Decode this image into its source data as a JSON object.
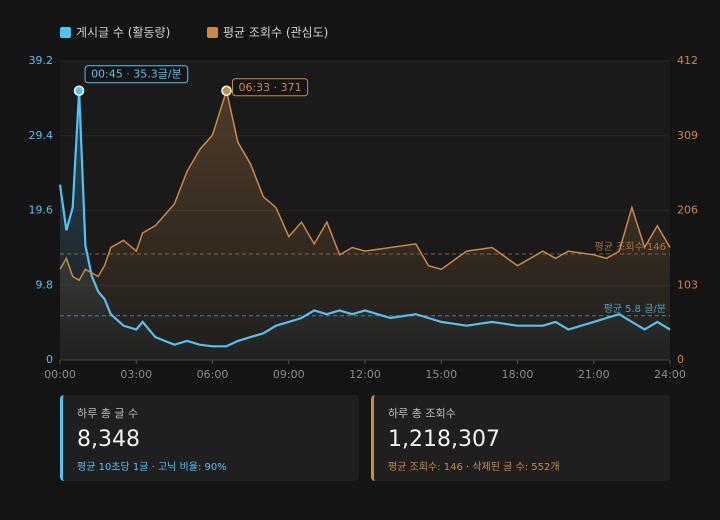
{
  "chart_data": {
    "type": "line",
    "x": [
      0,
      15,
      30,
      45,
      60,
      75,
      90,
      105,
      120,
      150,
      180,
      195,
      225,
      270,
      300,
      330,
      360,
      393,
      420,
      450,
      480,
      510,
      540,
      570,
      585,
      600,
      630,
      660,
      690,
      720,
      780,
      840,
      870,
      900,
      960,
      1020,
      1080,
      1140,
      1170,
      1200,
      1260,
      1290,
      1320,
      1350,
      1380,
      1410,
      1440
    ],
    "xlim": [
      0,
      1440
    ],
    "xticks": [
      {
        "value": 0,
        "label": "00:00"
      },
      {
        "value": 180,
        "label": "03:00"
      },
      {
        "value": 360,
        "label": "06:00"
      },
      {
        "value": 540,
        "label": "09:00"
      },
      {
        "value": 720,
        "label": "12:00"
      },
      {
        "value": 900,
        "label": "15:00"
      },
      {
        "value": 1080,
        "label": "18:00"
      },
      {
        "value": 1260,
        "label": "21:00"
      },
      {
        "value": 1440,
        "label": "24:00"
      }
    ],
    "ylim": [
      0,
      39.2
    ],
    "yticks": [
      0,
      9.8,
      19.6,
      29.4,
      39.2
    ],
    "y2lim": [
      0,
      412
    ],
    "y2ticks": [
      0,
      103,
      206,
      309,
      412
    ],
    "series": [
      {
        "name": "게시글 수 (활동량)",
        "color": "#4fc3f7",
        "values": [
          23,
          17,
          20,
          35.3,
          15,
          11,
          9,
          8,
          6,
          4.5,
          4,
          5,
          3,
          2,
          2.5,
          2,
          1.8,
          1.8,
          2.5,
          3,
          3.5,
          4.5,
          5,
          5.5,
          6,
          6.5,
          6,
          6.5,
          6,
          6.5,
          5.5,
          6,
          5.5,
          5,
          4.5,
          5,
          4.5,
          4.5,
          5,
          4,
          5,
          5.5,
          6,
          5,
          4,
          5,
          4
        ]
      },
      {
        "name": "평균 조회수 (관심도)",
        "color": "#c98a45",
        "axis": "y2",
        "values": [
          125,
          140,
          115,
          110,
          125,
          120,
          115,
          130,
          155,
          165,
          150,
          175,
          185,
          215,
          260,
          290,
          310,
          371,
          300,
          270,
          225,
          210,
          170,
          190,
          175,
          160,
          190,
          145,
          155,
          150,
          155,
          160,
          130,
          125,
          150,
          155,
          130,
          150,
          140,
          150,
          145,
          140,
          150,
          210,
          155,
          185,
          155
        ]
      }
    ],
    "annotations": [
      "00:45 · 35.3글/분",
      "06:33 · 371"
    ],
    "ref_lines": [
      {
        "value": 5.8,
        "label": "평균 5.8 글/분"
      },
      {
        "value": 146,
        "label": "평균 조회수 146",
        "axis": "y2"
      }
    ]
  },
  "cards": [
    {
      "title": "하루 총 글 수",
      "value": "8,348",
      "note": "평균 10초당 1글 · 고닉 비율: 90%"
    },
    {
      "title": "하루 총 조회수",
      "value": "1,218,307",
      "note": "평균 조회수: 146 · 삭제된 글 수: 552개"
    }
  ]
}
